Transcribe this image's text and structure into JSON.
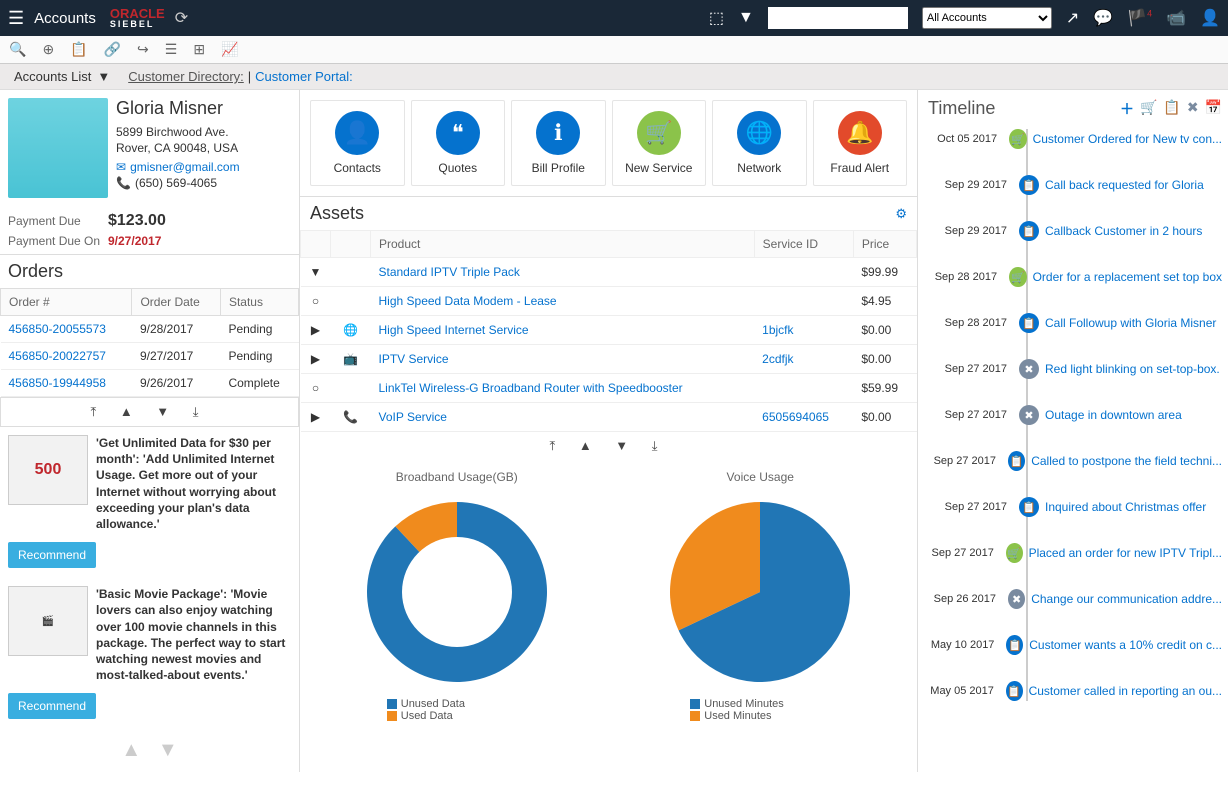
{
  "topbar": {
    "title": "Accounts",
    "logo_line1": "ORACLE",
    "logo_line2": "SIEBEL",
    "search_placeholder": "",
    "accounts_filter": "All Accounts",
    "notif_count": "4"
  },
  "breadcrumb": {
    "section": "Accounts List",
    "directory": "Customer Directory:",
    "portal": "Customer Portal:"
  },
  "profile": {
    "name": "Gloria Misner",
    "addr1": "5899 Birchwood Ave.",
    "addr2": "Rover, CA 90048, USA",
    "email": "gmisner@gmail.com",
    "phone": "(650) 569-4065"
  },
  "payment": {
    "due_label": "Payment Due",
    "due_amount": "$123.00",
    "due_on_label": "Payment Due On",
    "due_on_date": "9/27/2017"
  },
  "orders": {
    "title": "Orders",
    "cols": {
      "num": "Order #",
      "date": "Order Date",
      "status": "Status"
    },
    "rows": [
      {
        "num": "456850-20055573",
        "date": "9/28/2017",
        "status": "Pending"
      },
      {
        "num": "456850-20022757",
        "date": "9/27/2017",
        "status": "Pending"
      },
      {
        "num": "456850-19944958",
        "date": "9/26/2017",
        "status": "Complete"
      }
    ]
  },
  "promos": [
    {
      "badge": "500",
      "text": "'Get Unlimited Data for $30 per month': 'Add Unlimited Internet Usage. Get more out of your Internet without worrying about exceeding your plan's data allowance.'",
      "btn": "Recommend"
    },
    {
      "badge": "",
      "text": "'Basic Movie Package': 'Movie lovers can also enjoy watching over 100 movie channels in this package. The perfect way to start watching newest movies and most-talked-about events.'",
      "btn": "Recommend"
    }
  ],
  "actions": [
    {
      "label": "Contacts",
      "color": "#0572ce",
      "glyph": "👤"
    },
    {
      "label": "Quotes",
      "color": "#0572ce",
      "glyph": "❝"
    },
    {
      "label": "Bill Profile",
      "color": "#0572ce",
      "glyph": "ℹ"
    },
    {
      "label": "New Service",
      "color": "#8bc34a",
      "glyph": "🛒"
    },
    {
      "label": "Network",
      "color": "#0572ce",
      "glyph": "🌐"
    },
    {
      "label": "Fraud Alert",
      "color": "#e24a2b",
      "glyph": "🔔"
    }
  ],
  "assets": {
    "title": "Assets",
    "cols": {
      "product": "Product",
      "service": "Service ID",
      "price": "Price"
    },
    "rows": [
      {
        "caret": "▼",
        "icon": "",
        "product": "Standard IPTV Triple Pack",
        "service": "",
        "price": "$99.99"
      },
      {
        "caret": "○",
        "icon": "",
        "product": "High Speed Data Modem - Lease",
        "service": "",
        "price": "$4.95"
      },
      {
        "caret": "▶",
        "icon": "🌐",
        "product": "High Speed Internet Service",
        "service": "1bjcfk",
        "price": "$0.00"
      },
      {
        "caret": "▶",
        "icon": "📺",
        "product": "IPTV Service",
        "service": "2cdfjk",
        "price": "$0.00"
      },
      {
        "caret": "○",
        "icon": "",
        "product": "LinkTel Wireless-G Broadband Router with Speedbooster",
        "service": "",
        "price": "$59.99"
      },
      {
        "caret": "▶",
        "icon": "📞",
        "product": "VoIP Service",
        "service": "6505694065",
        "price": "$0.00"
      }
    ]
  },
  "charts": {
    "broadband": {
      "title": "Broadband Usage(GB)",
      "type": "donut",
      "series": [
        {
          "label": "Unused Data",
          "value": 88,
          "color": "#2176b5"
        },
        {
          "label": "Used Data",
          "value": 12,
          "color": "#f08b1d"
        }
      ]
    },
    "voice": {
      "title": "Voice Usage",
      "type": "pie",
      "series": [
        {
          "label": "Unused Minutes",
          "value": 68,
          "color": "#2176b5"
        },
        {
          "label": "Used Minutes",
          "value": 32,
          "color": "#f08b1d"
        }
      ]
    }
  },
  "timeline": {
    "title": "Timeline",
    "items": [
      {
        "date": "Oct 05 2017",
        "color": "#8bc34a",
        "glyph": "🛒",
        "text": "Customer Ordered for  New tv con..."
      },
      {
        "date": "Sep 29 2017",
        "color": "#0572ce",
        "glyph": "📋",
        "text": "Call back requested for Gloria"
      },
      {
        "date": "Sep 29 2017",
        "color": "#0572ce",
        "glyph": "📋",
        "text": "Callback Customer in 2 hours"
      },
      {
        "date": "Sep 28 2017",
        "color": "#8bc34a",
        "glyph": "🛒",
        "text": "Order for a replacement set top box"
      },
      {
        "date": "Sep 28 2017",
        "color": "#0572ce",
        "glyph": "📋",
        "text": "Call Followup with Gloria Misner"
      },
      {
        "date": "Sep 27 2017",
        "color": "#7a8ba0",
        "glyph": "✖",
        "text": "Red light blinking on set-top-box."
      },
      {
        "date": "Sep 27 2017",
        "color": "#7a8ba0",
        "glyph": "✖",
        "text": "Outage in downtown area"
      },
      {
        "date": "Sep 27 2017",
        "color": "#0572ce",
        "glyph": "📋",
        "text": "Called to postpone the field techni..."
      },
      {
        "date": "Sep 27 2017",
        "color": "#0572ce",
        "glyph": "📋",
        "text": "Inquired about Christmas offer"
      },
      {
        "date": "Sep 27 2017",
        "color": "#8bc34a",
        "glyph": "🛒",
        "text": "Placed an order for new IPTV Tripl..."
      },
      {
        "date": "Sep 26 2017",
        "color": "#7a8ba0",
        "glyph": "✖",
        "text": "Change our communication addre..."
      },
      {
        "date": "May 10 2017",
        "color": "#0572ce",
        "glyph": "📋",
        "text": "Customer wants a 10% credit on c..."
      },
      {
        "date": "May 05 2017",
        "color": "#0572ce",
        "glyph": "📋",
        "text": "Customer called in reporting an ou..."
      }
    ]
  }
}
